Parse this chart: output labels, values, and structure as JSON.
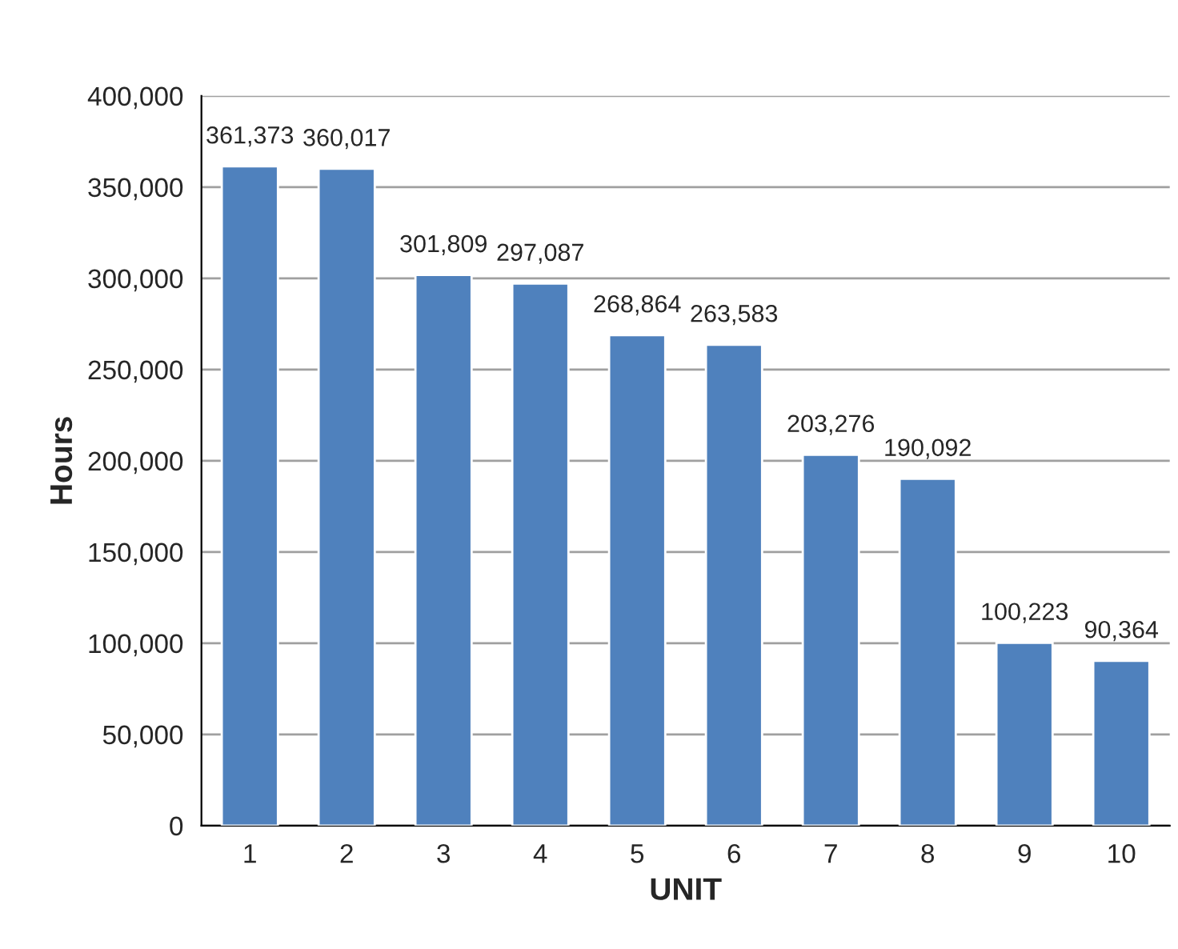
{
  "chart_data": {
    "type": "bar",
    "xlabel": "UNIT",
    "ylabel": "Hours",
    "categories": [
      "1",
      "2",
      "3",
      "4",
      "5",
      "6",
      "7",
      "8",
      "9",
      "10"
    ],
    "values": [
      361373,
      360017,
      301809,
      297087,
      268864,
      263583,
      203276,
      190092,
      100223,
      90364
    ],
    "value_labels": [
      "361,373",
      "360,017",
      "301,809",
      "297,087",
      "268,864",
      "263,583",
      "203,276",
      "190,092",
      "100,223",
      "90,364"
    ],
    "color": "#4f81bd",
    "grid": "y",
    "legend": false,
    "ylim": [
      0,
      400000
    ],
    "yticks": [
      0,
      {
        "value": 50000,
        "label": "50,000"
      },
      {
        "value": 100000,
        "label": "100,000"
      },
      {
        "value": 150000,
        "label": "150,000"
      },
      {
        "value": 200000,
        "label": "200,000"
      },
      {
        "value": 250000,
        "label": "250,000"
      },
      {
        "value": 300000,
        "label": "300,000"
      },
      {
        "value": 350000,
        "label": "350,000"
      },
      {
        "value": 400000,
        "label": "400,000"
      }
    ]
  }
}
